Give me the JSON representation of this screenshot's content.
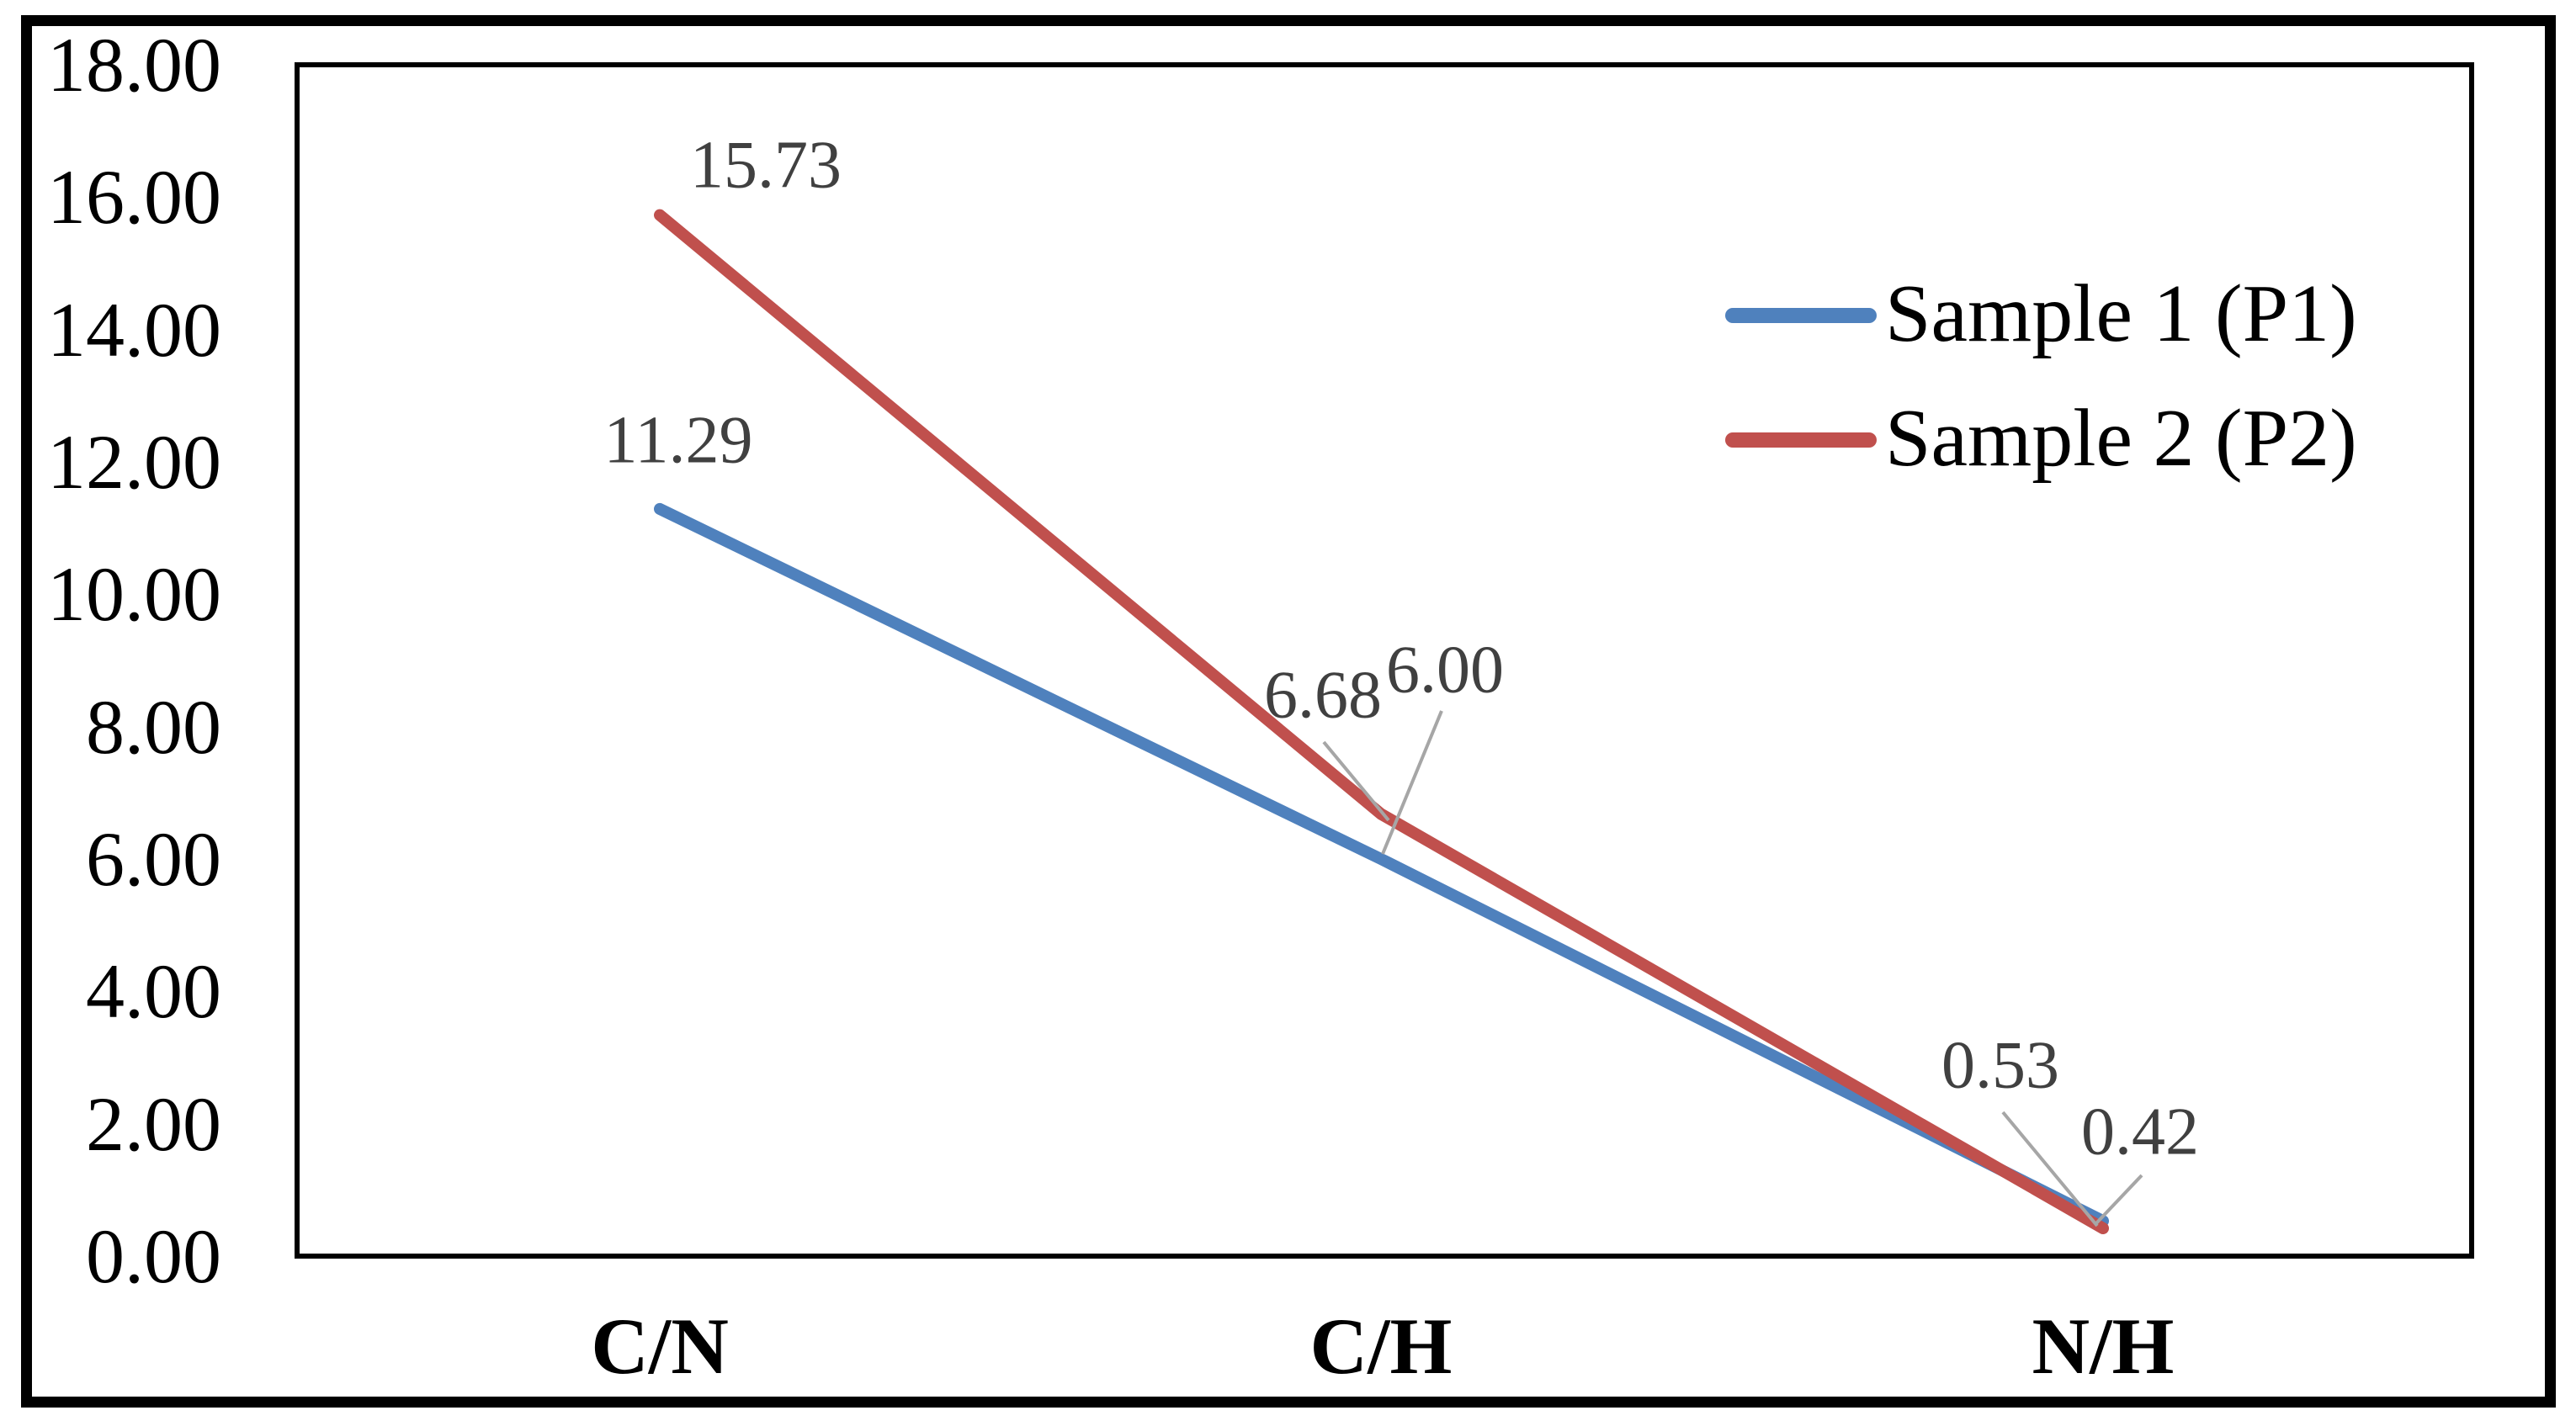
{
  "chart_data": {
    "type": "line",
    "title": "",
    "xlabel": "",
    "ylabel": "",
    "categories": [
      "C/N",
      "C/H",
      "N/H"
    ],
    "series": [
      {
        "name": "Sample 1 (P1)",
        "color": "#4F81BD",
        "values": [
          11.29,
          6.0,
          0.53
        ],
        "data_labels": [
          "11.29",
          "6.00",
          "0.53"
        ]
      },
      {
        "name": "Sample 2 (P2)",
        "color": "#C0504D",
        "values": [
          15.73,
          6.68,
          0.42
        ],
        "data_labels": [
          "15.73",
          "6.68",
          "0.42"
        ]
      }
    ],
    "y_axis": {
      "min": 0,
      "max": 18,
      "step": 2,
      "tick_labels": [
        "18.00",
        "16.00",
        "14.00",
        "12.00",
        "10.00",
        "8.00",
        "6.00",
        "4.00",
        "2.00",
        "0.00"
      ]
    },
    "grid": false,
    "legend_position": "inside-top-right",
    "colors": {
      "data_label_text": "#404040",
      "leader_line": "#A6A6A6",
      "axis_text": "#000000",
      "plot_border": "#000000",
      "outer_border": "#000000",
      "background": "#ffffff"
    }
  }
}
